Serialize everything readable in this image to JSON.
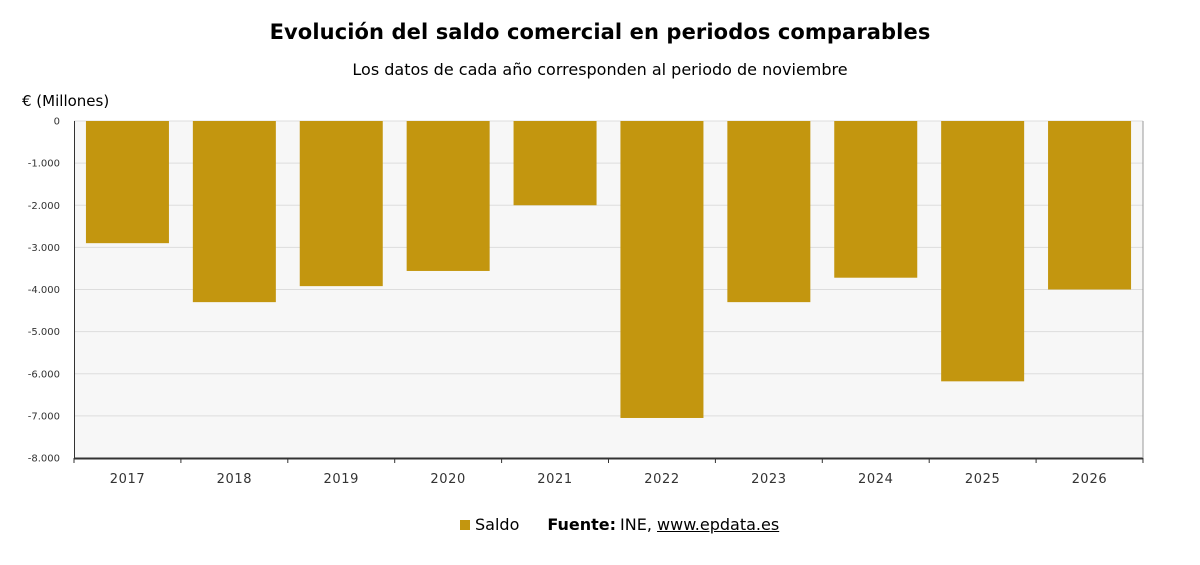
{
  "header": {
    "title": "Evolución del saldo comercial en periodos comparables",
    "subtitle": "Los datos de cada año corresponden al periodo de noviembre"
  },
  "legend": {
    "label": "Saldo",
    "source_prefix": "Fuente:",
    "source_text": "INE,",
    "source_link": "www.epdata.es"
  },
  "colors": {
    "bar": "#c3960f",
    "plot_bg": "#f7f7f7",
    "grid": "#dddddd",
    "axis": "#333333"
  },
  "chart_data": {
    "type": "bar",
    "title": "Evolución del saldo comercial en periodos comparables",
    "subtitle": "Los datos de cada año corresponden al periodo de noviembre",
    "ylabel": "€ (Millones)",
    "xlabel": "",
    "categories": [
      "2017",
      "2018",
      "2019",
      "2020",
      "2021",
      "2022",
      "2023",
      "2024",
      "2025",
      "2026"
    ],
    "series": [
      {
        "name": "Saldo",
        "values": [
          -2900,
          -4300,
          -3920,
          -3560,
          -2000,
          -7050,
          -4300,
          -3720,
          -6180,
          -4000
        ]
      }
    ],
    "ylim": [
      -8000,
      0
    ],
    "yticks": [
      0,
      -1000,
      -2000,
      -3000,
      -4000,
      -5000,
      -6000,
      -7000,
      -8000
    ],
    "ytick_labels": [
      "0",
      "-1.000",
      "-2.000",
      "-3.000",
      "-4.000",
      "-5.000",
      "-6.000",
      "-7.000",
      "-8.000"
    ],
    "grid": true,
    "legend_position": "bottom"
  }
}
